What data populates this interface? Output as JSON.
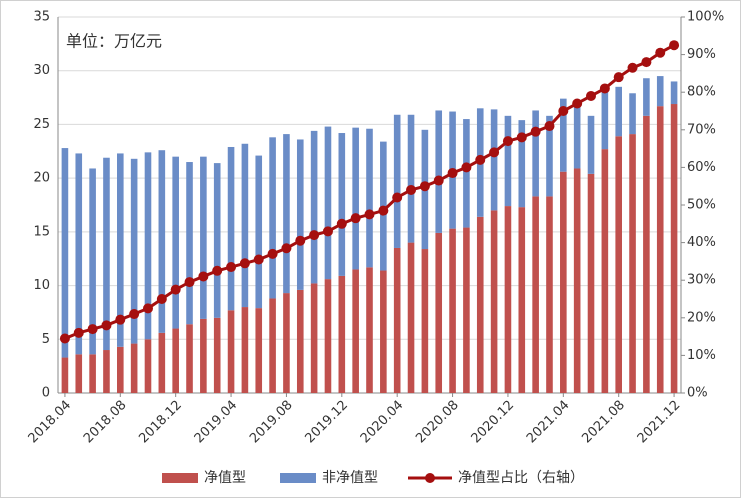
{
  "chart_data": {
    "type": "bar",
    "stacked": true,
    "annotation": "单位：万亿元",
    "categories": [
      "2018.04",
      null,
      null,
      null,
      "2018.08",
      null,
      null,
      null,
      "2018.12",
      null,
      null,
      null,
      "2019.04",
      null,
      null,
      null,
      "2019.08",
      null,
      null,
      null,
      "2019.12",
      null,
      null,
      null,
      "2020.04",
      null,
      null,
      null,
      "2020.08",
      null,
      null,
      null,
      "2020.12",
      null,
      null,
      null,
      "2021.04",
      null,
      null,
      null,
      "2021.08",
      null,
      null,
      null,
      "2021.12"
    ],
    "series": [
      {
        "name": "净值型",
        "type": "bar",
        "color": "#c0504d",
        "values": [
          3.3,
          3.6,
          3.6,
          4.0,
          4.3,
          4.6,
          5.0,
          5.6,
          6.0,
          6.4,
          6.9,
          7.0,
          7.7,
          8.0,
          7.9,
          8.8,
          9.3,
          9.6,
          10.2,
          10.6,
          10.9,
          11.5,
          11.7,
          11.4,
          13.5,
          14.0,
          13.4,
          14.9,
          15.3,
          15.4,
          16.4,
          17.0,
          17.4,
          17.3,
          18.3,
          18.3,
          20.6,
          20.9,
          20.4,
          22.7,
          23.9,
          24.1,
          25.8,
          26.7,
          26.9
        ]
      },
      {
        "name": "非净值型",
        "type": "bar",
        "color": "#6a8cc7",
        "values": [
          19.5,
          18.7,
          17.3,
          17.9,
          18.0,
          17.2,
          17.4,
          17.0,
          16.0,
          15.1,
          15.1,
          14.4,
          15.2,
          15.2,
          14.2,
          15.0,
          14.8,
          14.0,
          14.2,
          14.2,
          13.3,
          13.2,
          12.9,
          12.0,
          12.4,
          11.9,
          11.1,
          11.4,
          10.9,
          10.1,
          10.1,
          9.4,
          8.4,
          8.1,
          8.0,
          7.5,
          6.8,
          6.3,
          5.4,
          5.3,
          4.6,
          3.8,
          3.5,
          2.8,
          2.1
        ]
      },
      {
        "name": "净值型占比（右轴）",
        "type": "line",
        "axis": "y2",
        "color": "#a50f0f",
        "values": [
          14.5,
          16,
          17,
          18,
          19.5,
          21,
          22.5,
          25,
          27.5,
          29.5,
          31,
          32.5,
          33.5,
          34.5,
          35.5,
          37,
          38.5,
          40.5,
          42,
          43,
          45,
          46.5,
          47.5,
          48.5,
          52,
          54,
          55,
          56.5,
          58.5,
          60,
          62,
          64,
          67,
          68,
          69.5,
          71,
          75,
          77,
          79,
          81,
          84,
          86.5,
          88,
          90.5,
          92.5
        ]
      }
    ],
    "ylim": [
      0,
      35
    ],
    "yticks": [
      0,
      5,
      10,
      15,
      20,
      25,
      30,
      35
    ],
    "y2lim": [
      0,
      100
    ],
    "y2ticks": [
      {
        "value": 0,
        "label": "0%"
      },
      {
        "value": 10,
        "label": "10%"
      },
      {
        "value": 20,
        "label": "20%"
      },
      {
        "value": 30,
        "label": "30%"
      },
      {
        "value": 40,
        "label": "40%"
      },
      {
        "value": 50,
        "label": "50%"
      },
      {
        "value": 60,
        "label": "60%"
      },
      {
        "value": 70,
        "label": "70%"
      },
      {
        "value": 80,
        "label": "80%"
      },
      {
        "value": 90,
        "label": "90%"
      },
      {
        "value": 100,
        "label": "100%"
      }
    ],
    "grid": true,
    "legend": "bottom"
  }
}
